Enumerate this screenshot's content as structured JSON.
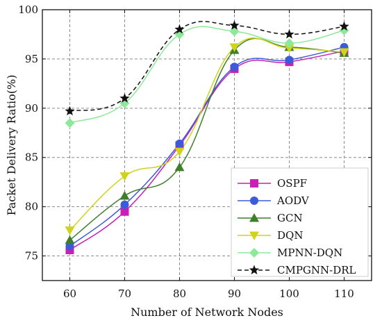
{
  "chart_data": {
    "type": "line",
    "xlabel": "Number of Network Nodes",
    "ylabel": "Packet Delivery Ratio(%)",
    "x": [
      60,
      70,
      80,
      90,
      100,
      110
    ],
    "x_ticks": [
      "60",
      "70",
      "80",
      "90",
      "100",
      "110"
    ],
    "xlim": [
      55,
      115
    ],
    "ylim": [
      72.5,
      100
    ],
    "y_ticks": [
      "75",
      "80",
      "85",
      "90",
      "95",
      "100"
    ],
    "y_tick_values": [
      75,
      80,
      85,
      90,
      95,
      100
    ],
    "grid": "dashed",
    "legend_position": "lower-right",
    "series": [
      {
        "name": "OSPF",
        "values": [
          75.6,
          79.5,
          86.2,
          94.0,
          94.7,
          95.8
        ],
        "color": "#c81fb4",
        "marker": "square",
        "line": "solid"
      },
      {
        "name": "AODV",
        "values": [
          76.0,
          80.2,
          86.4,
          94.2,
          94.9,
          96.2
        ],
        "color": "#3b5bdb",
        "marker": "circle",
        "line": "solid"
      },
      {
        "name": "GCN",
        "values": [
          76.6,
          81.1,
          84.0,
          95.9,
          96.2,
          95.6
        ],
        "color": "#3f7f2a",
        "marker": "triangle-up",
        "line": "solid"
      },
      {
        "name": "DQN",
        "values": [
          77.6,
          83.1,
          85.6,
          96.2,
          96.1,
          95.7
        ],
        "color": "#cfd31a",
        "marker": "triangle-down",
        "line": "solid"
      },
      {
        "name": "MPNN-DQN",
        "values": [
          88.5,
          90.5,
          97.5,
          97.8,
          96.6,
          97.9
        ],
        "color": "#8ee89a",
        "marker": "diamond",
        "line": "solid"
      },
      {
        "name": "CMPGNN-DRL",
        "values": [
          89.7,
          91.0,
          98.0,
          98.4,
          97.5,
          98.3
        ],
        "color": "#111111",
        "marker": "star",
        "line": "dashed"
      }
    ]
  }
}
